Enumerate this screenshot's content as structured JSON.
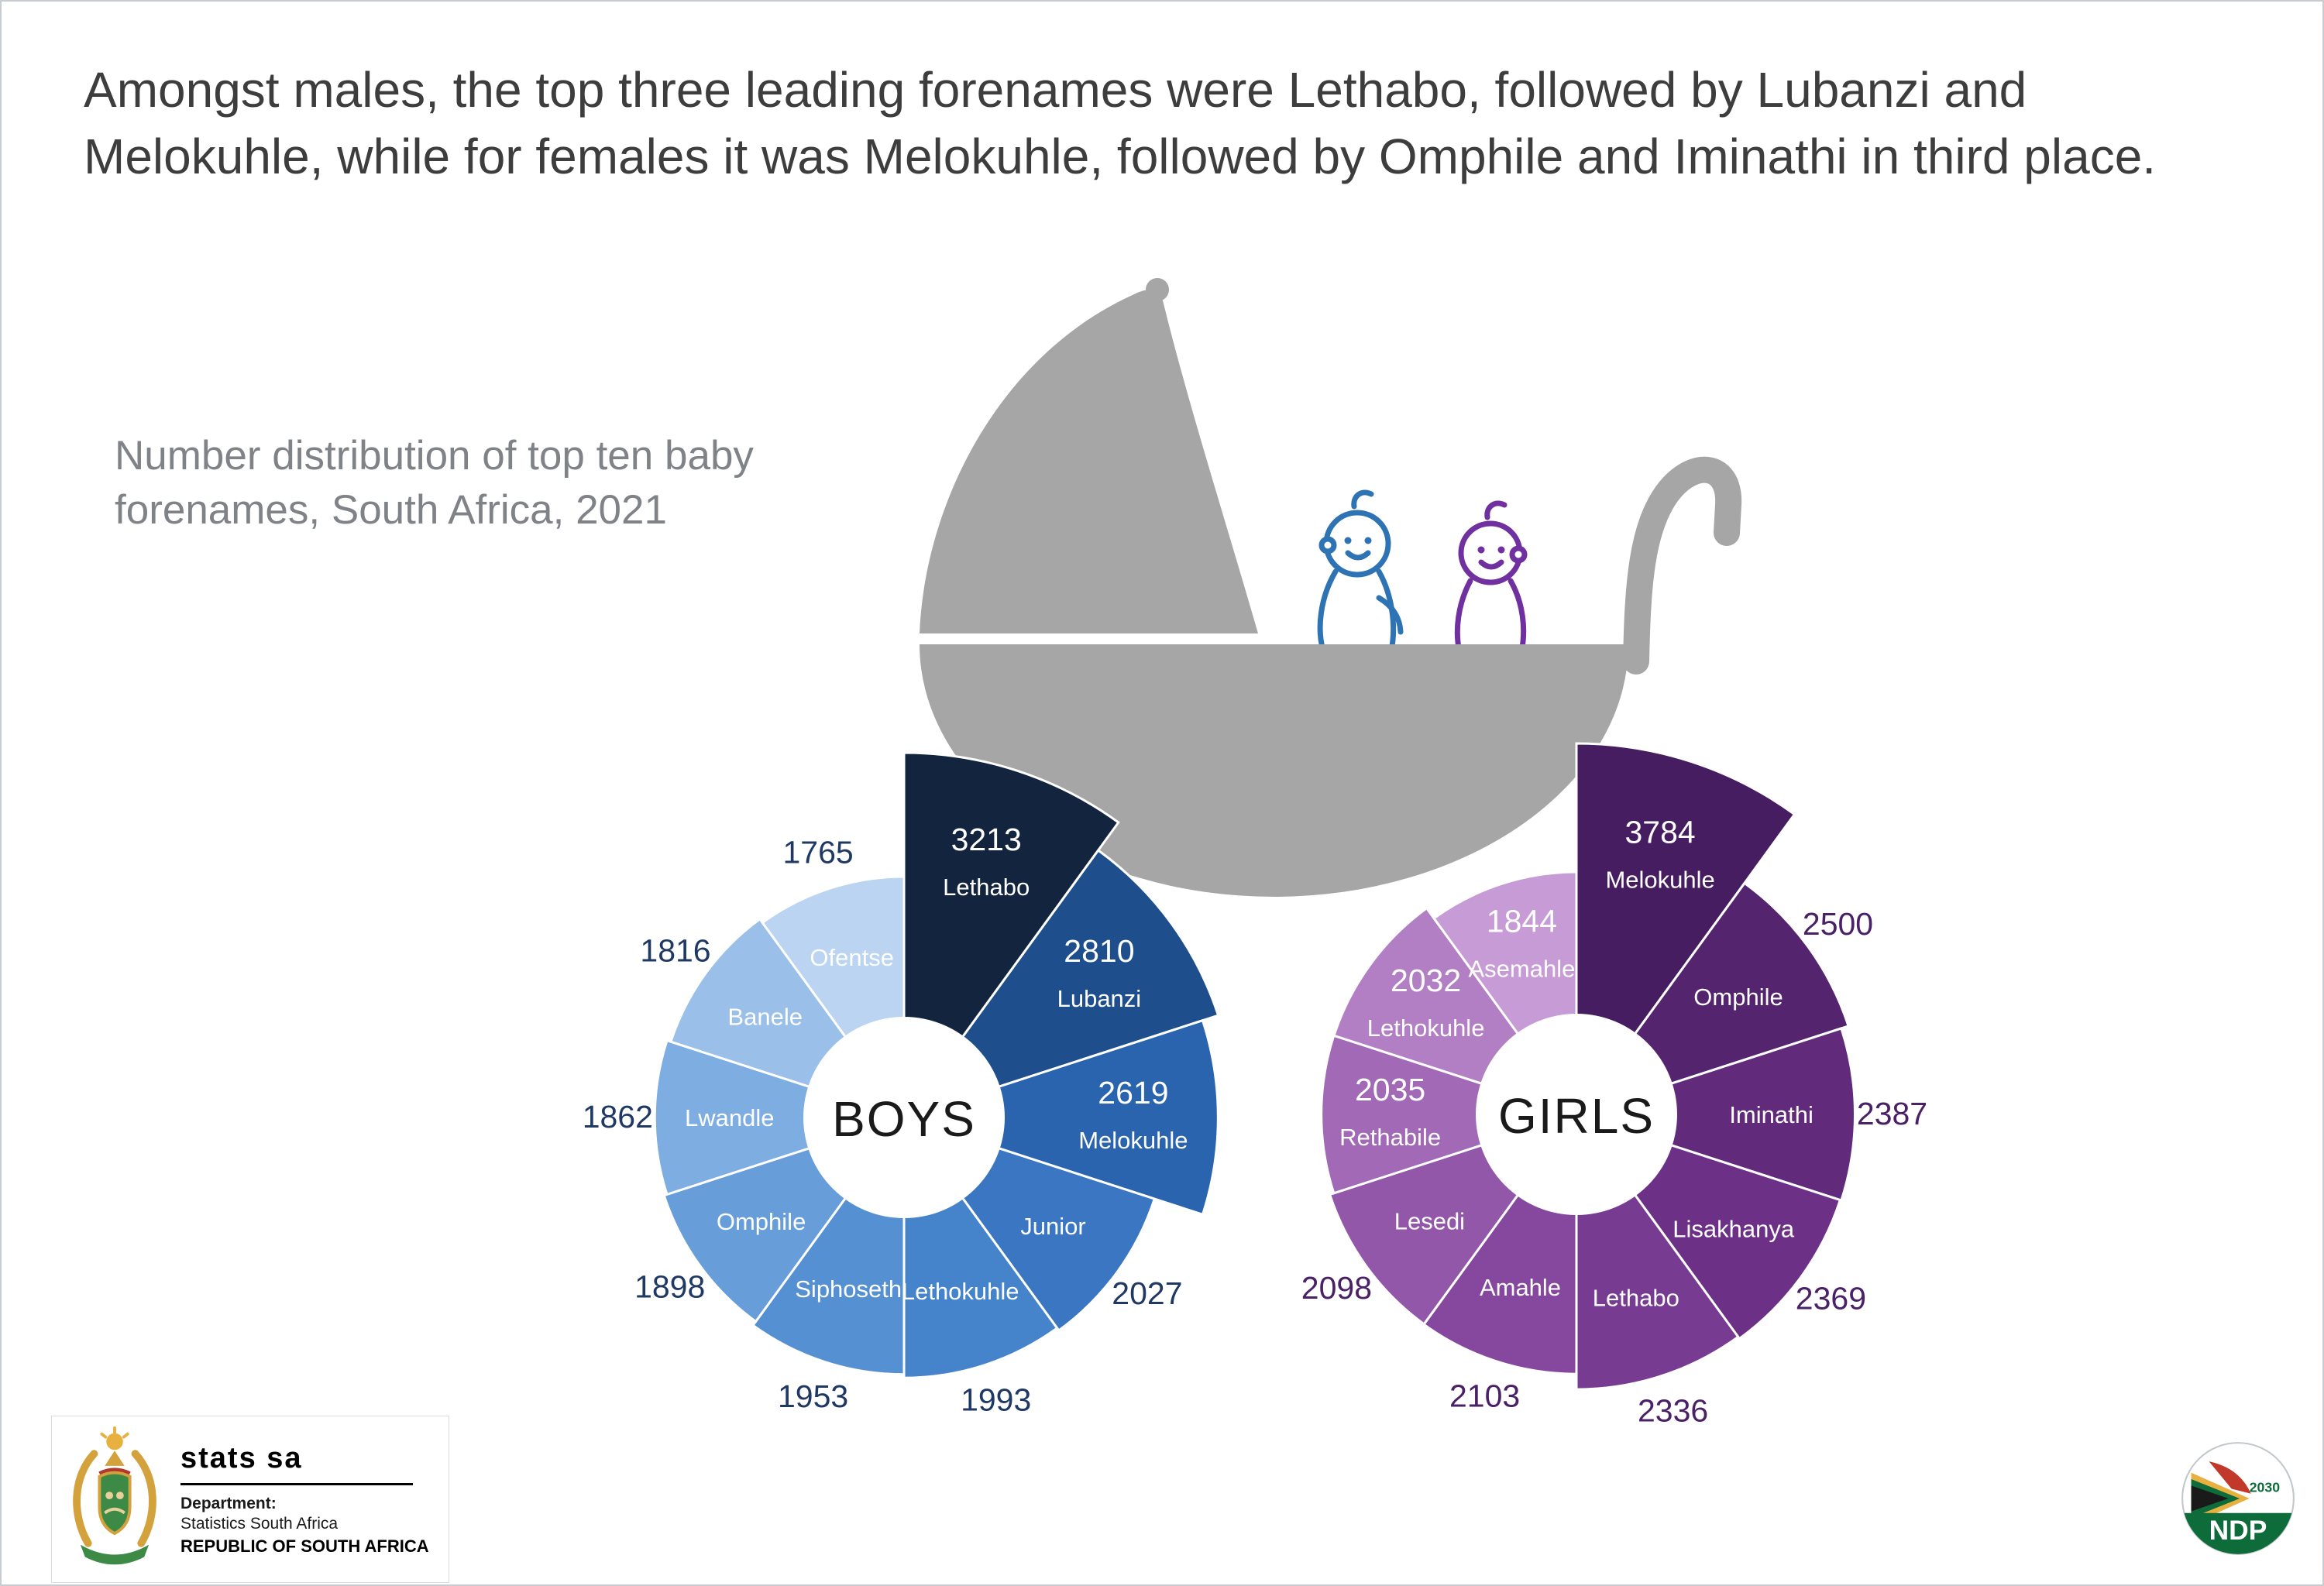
{
  "page": {
    "title": "Amongst males, the top three leading forenames were Lethabo, followed by Lubanzi and Melokuhle, while for females it was Melokuhle, followed by Omphile and Iminathi in third place.",
    "subtitle": "Number distribution of top ten baby forenames, South Africa, 2021"
  },
  "chart_data": [
    {
      "type": "rose",
      "name": "boys",
      "center_label": "BOYS",
      "start": "top",
      "direction": "clockwise",
      "equal_angles": true,
      "categories": [
        "Lethabo",
        "Lubanzi",
        "Melokuhle",
        "Junior",
        "Lethokuhle",
        "Siphoseth",
        "Omphile",
        "Lwandle",
        "Banele",
        "Ofentse"
      ],
      "values": [
        3213,
        2810,
        2619,
        2027,
        1993,
        1953,
        1898,
        1862,
        1816,
        1765
      ],
      "colors": [
        "#13243f",
        "#1e4e8c",
        "#2a63ae",
        "#3a76c1",
        "#4583ca",
        "#5590d2",
        "#679dd9",
        "#7dade1",
        "#9ac0ea",
        "#bad4f2"
      ],
      "value_inside": [
        true,
        true,
        true,
        false,
        false,
        false,
        false,
        false,
        false,
        false
      ],
      "inside_text_color": "#ffffff",
      "outside_value_color": "#1f3864"
    },
    {
      "type": "rose",
      "name": "girls",
      "center_label": "GIRLS",
      "start": "top",
      "direction": "clockwise",
      "equal_angles": true,
      "categories": [
        "Melokuhle",
        "Omphile",
        "Iminathi",
        "Lisakhanya",
        "Lethabo",
        "Amahle",
        "Lesedi",
        "Rethabile",
        "Lethokuhle",
        "Asemahle"
      ],
      "values": [
        3784,
        2500,
        2387,
        2369,
        2336,
        2103,
        2098,
        2035,
        2032,
        1844
      ],
      "colors": [
        "#471d62",
        "#55246f",
        "#612a7b",
        "#6c3087",
        "#773b92",
        "#85489e",
        "#9257a9",
        "#a169b6",
        "#b27fc4",
        "#c79bd5"
      ],
      "value_inside": [
        true,
        false,
        false,
        false,
        false,
        false,
        false,
        true,
        true,
        true
      ],
      "inside_text_color": "#ffffff",
      "outside_value_color": "#4a2166"
    }
  ],
  "footer": {
    "statssa": {
      "brand": "stats sa",
      "dept_label": "Department:",
      "dept_name": "Statistics South Africa",
      "country": "REPUBLIC OF SOUTH AFRICA"
    },
    "ndp": {
      "label": "NDP",
      "year": "2030"
    }
  }
}
